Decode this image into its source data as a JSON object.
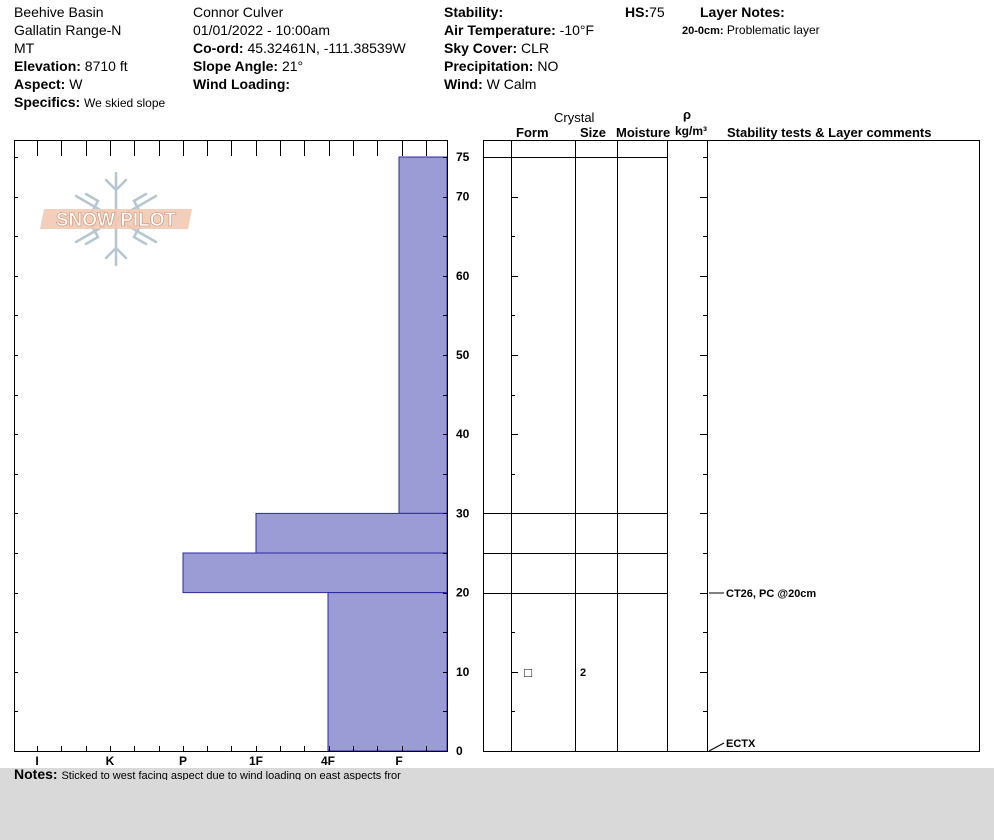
{
  "header": {
    "location": "Beehive Basin",
    "range": "Gallatin Range-N",
    "state": "MT",
    "elevation_label": "Elevation:",
    "elevation_value": "8710 ft",
    "aspect_label": "Aspect:",
    "aspect_value": "W",
    "specifics_label": "Specifics:",
    "specifics_value": "We skied slope",
    "observer": "Connor Culver",
    "datetime": "01/01/2022 - 10:00am",
    "coord_label": "Co-ord:",
    "coord_value": "45.32461N, -111.38539W",
    "slope_label": "Slope Angle:",
    "slope_value": "21°",
    "wind_loading_label": "Wind Loading:",
    "stability_label": "Stability:",
    "airtemp_label": "Air Temperature:",
    "airtemp_value": "-10°F",
    "sky_label": "Sky Cover:",
    "sky_value": "CLR",
    "precip_label": "Precipitation:",
    "precip_value": "NO",
    "wind_label": "Wind:",
    "wind_value": "W Calm",
    "hs_label": "HS:",
    "hs_value": "75",
    "layer_notes_label": "Layer Notes:",
    "layer_note_depth": "20-0cm:",
    "layer_note_text": "Problematic layer"
  },
  "table_headers": {
    "crystal": "Crystal",
    "form": "Form",
    "size": "Size",
    "moisture": "Moisture",
    "rho": "ρ",
    "density_unit": "kg/m³",
    "stability": "Stability tests & Layer comments"
  },
  "logo_text": "SNOW PILOT",
  "notes": {
    "label": "Notes:",
    "text": "Sticked to west facing aspect due to wind loading on east aspects fror"
  },
  "chart_data": {
    "type": "bar",
    "title": "",
    "orientation": "horizontal",
    "xlabel": "",
    "ylabel": "",
    "x_categories": [
      "I",
      "K",
      "P",
      "1F",
      "4F",
      "F"
    ],
    "x_scale_note": "hardness increases to the left",
    "y_ticks": [
      0,
      10,
      20,
      30,
      40,
      50,
      60,
      70,
      75
    ],
    "ylim": [
      0,
      75
    ],
    "layers": [
      {
        "top": 75,
        "bottom": 30,
        "hardness": "F"
      },
      {
        "top": 30,
        "bottom": 25,
        "hardness": "1F"
      },
      {
        "top": 25,
        "bottom": 20,
        "hardness": "P"
      },
      {
        "top": 20,
        "bottom": 0,
        "hardness": "4F"
      }
    ],
    "layer_boundaries": [
      75,
      30,
      25,
      20
    ],
    "crystal_rows": [
      {
        "depth": 10,
        "form": "□",
        "size": "2"
      }
    ],
    "stability_tests": [
      {
        "depth": 20,
        "text": "CT26, PC @20cm"
      },
      {
        "depth": 0,
        "text": "ECTX"
      }
    ],
    "bar_color": "#9b9bd6",
    "bar_edge_color": "#2b2b9e",
    "grid": false
  }
}
